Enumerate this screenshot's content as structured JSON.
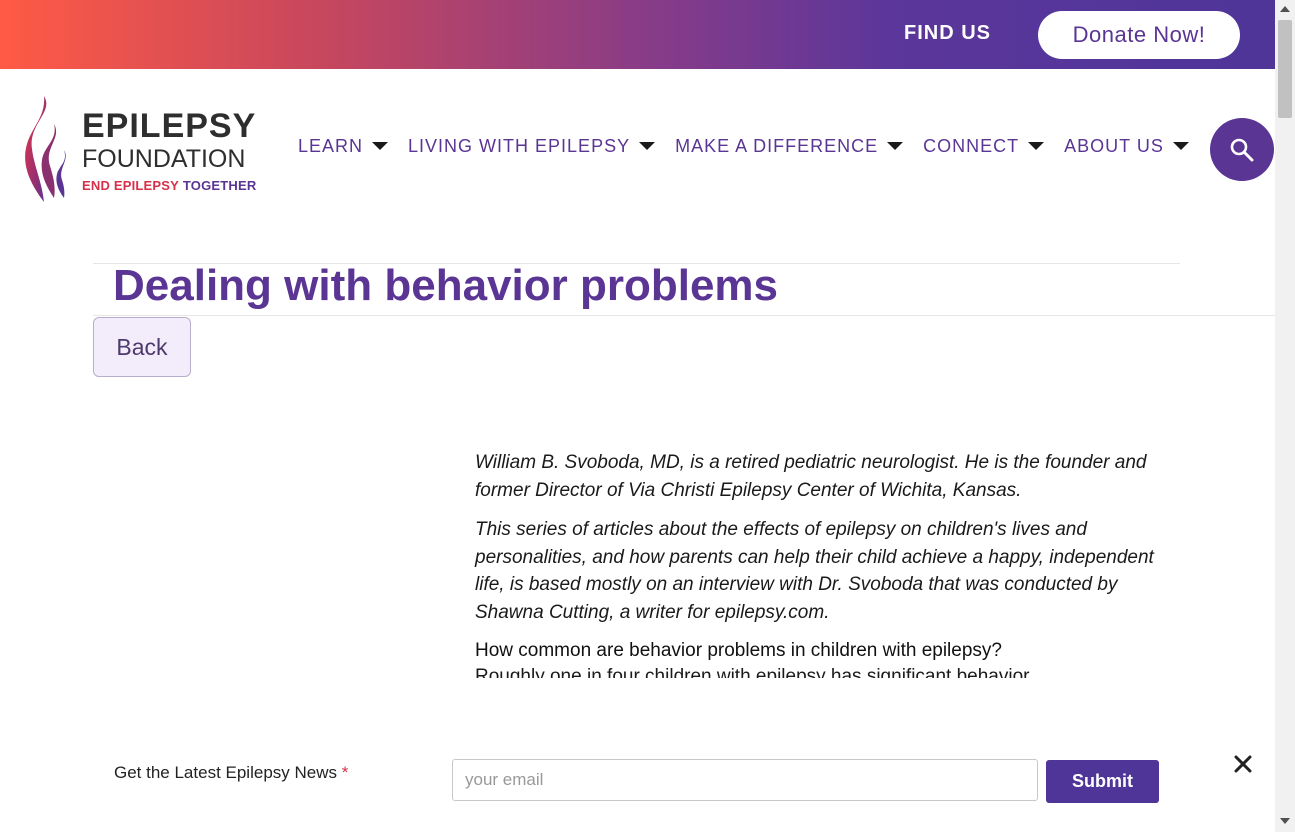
{
  "header": {
    "find_us": "FIND US",
    "donate": "Donate Now!"
  },
  "logo": {
    "line1": "EPILEPSY",
    "line2": "FOUNDATION",
    "line3_a": "END EPILEPSY",
    "line3_b": "TOGETHER"
  },
  "nav": {
    "items": [
      "LEARN",
      "LIVING WITH EPILEPSY",
      "MAKE A DIFFERENCE",
      "CONNECT",
      "ABOUT US"
    ]
  },
  "page": {
    "title": "Dealing with behavior problems",
    "back": "Back"
  },
  "article": {
    "p1": "William B. Svoboda, MD, is a retired pediatric neurologist. He is the founder and former Director of Via Christi Epilepsy Center of Wichita, Kansas.",
    "p2": "This series of articles about the effects of epilepsy on children's lives and personalities, and how parents can help their child achieve a happy, independent life, is based mostly on an interview with Dr. Svoboda that was conducted by Shawna Cutting, a writer for epilepsy.com.",
    "heading": "How common are behavior problems in children with epilepsy?",
    "partial": "Roughly one in four children with epilepsy has significant behavior"
  },
  "newsletter": {
    "label": "Get the Latest Epilepsy News",
    "required_mark": "*",
    "placeholder": "your email",
    "submit": "Submit"
  },
  "colors": {
    "brand_purple": "#5a3594",
    "accent_red": "#d7314a"
  }
}
